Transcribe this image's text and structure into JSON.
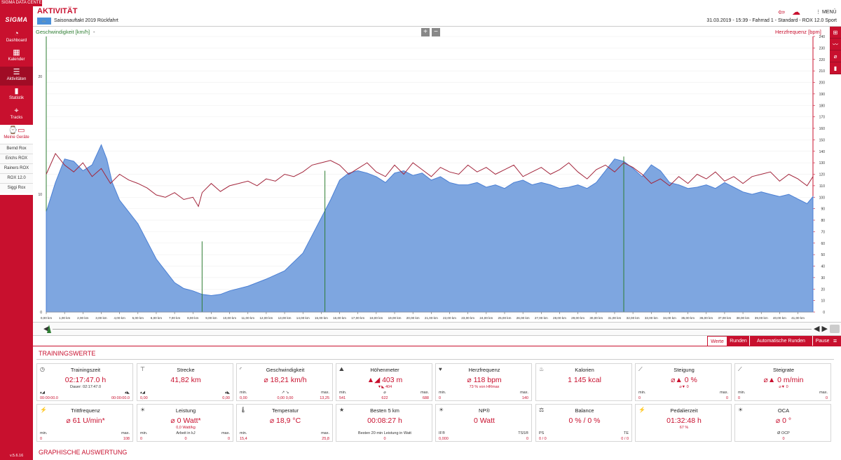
{
  "app": {
    "title": "SIGMA DATA CENTER 5.6",
    "version": "v.5.6.16",
    "logo": "SIGMA"
  },
  "sidebar": {
    "items": [
      {
        "label": "Dashboard",
        "icon": "speedometer-icon",
        "glyph": "◔"
      },
      {
        "label": "Kalender",
        "icon": "calendar-icon",
        "glyph": "▦"
      },
      {
        "label": "Aktivitäten",
        "icon": "list-icon",
        "glyph": "☰"
      },
      {
        "label": "Statistik",
        "icon": "bar-chart-icon",
        "glyph": "▮"
      },
      {
        "label": "Tracks",
        "icon": "map-pin-icon",
        "glyph": "⌖"
      }
    ],
    "devices_label": "Meine Geräte",
    "devices": [
      "Bernd Rox",
      "Erichs ROX",
      "Rainers ROX",
      "ROX 12.0",
      "Siggi Rox"
    ]
  },
  "header": {
    "title": "AKTIVITÄT",
    "activity_name": "Saisonauftakt 2019 Rückfahrt",
    "meta": "31.03.2019  -  15:39  -  Fahrrad 1  -  Standard  -  ROX 12.0 Sport",
    "menu": "MENÜ"
  },
  "chart": {
    "left_label": "Geschwindigkeit [km/h]",
    "left_dash": "-",
    "right_label": "Herzfrequenz [bpm]",
    "zoom_in": "+",
    "zoom_out": "−"
  },
  "chart_data": {
    "type": "area",
    "xlabel": "",
    "x_unit": "km",
    "xlim": [
      0,
      41.82
    ],
    "x_ticks": [
      "0,00 km",
      "1,00 km",
      "2,00 km",
      "3,00 km",
      "4,00 km",
      "5,00 km",
      "6,00 km",
      "7,00 km",
      "8,00 km",
      "9,00 km",
      "10,00 km",
      "11,00 km",
      "12,00 km",
      "13,00 km",
      "14,00 km",
      "15,00 km",
      "16,00 km",
      "17,00 km",
      "18,00 km",
      "19,00 km",
      "20,00 km",
      "21,00 km",
      "22,00 km",
      "23,00 km",
      "24,00 km",
      "25,00 km",
      "26,00 km",
      "27,00 km",
      "28,00 km",
      "29,00 km",
      "30,00 km",
      "31,00 km",
      "32,00 km",
      "33,00 km",
      "34,00 km",
      "35,00 km",
      "36,00 km",
      "37,00 km",
      "38,00 km",
      "39,00 km",
      "40,00 km",
      "41,00 km"
    ],
    "left_axis": {
      "ylim": [
        0,
        23.4
      ],
      "ticks": [
        0,
        10,
        20
      ]
    },
    "right_axis": {
      "ylim": [
        0,
        240
      ],
      "ticks": [
        0,
        10,
        20,
        30,
        40,
        50,
        60,
        70,
        80,
        90,
        100,
        110,
        120,
        130,
        140,
        150,
        160,
        170,
        180,
        190,
        200,
        210,
        220,
        230,
        240
      ]
    },
    "series": [
      {
        "name": "Höhe",
        "color": "#7ea6e0",
        "x": [
          0,
          0.5,
          1,
          1.5,
          2,
          2.5,
          3,
          3.3,
          3.6,
          4,
          4.5,
          5,
          5.5,
          6,
          6.5,
          7,
          7.5,
          8,
          8.5,
          9,
          9.5,
          10,
          11,
          12,
          13,
          14,
          14.5,
          15,
          15.5,
          16,
          16.5,
          17,
          17.5,
          18,
          18.5,
          19,
          19.5,
          20,
          20.5,
          21,
          21.5,
          22,
          22.5,
          23,
          23.5,
          24,
          24.5,
          25,
          25.5,
          26,
          26.5,
          27,
          27.5,
          28,
          28.5,
          29,
          29.5,
          30,
          30.5,
          31,
          31.5,
          32,
          32.5,
          33,
          33.5,
          34,
          34.5,
          35,
          35.5,
          36,
          36.5,
          37,
          37.5,
          38,
          38.5,
          39,
          39.5,
          40,
          40.5,
          41,
          41.5,
          41.82
        ],
        "values": [
          8.5,
          11,
          13,
          12.8,
          12,
          12.5,
          14.2,
          13,
          11,
          9.5,
          8.5,
          7.5,
          6,
          4.5,
          3.5,
          2.5,
          2,
          1.8,
          1.5,
          1.4,
          1.5,
          1.8,
          2.2,
          2.8,
          3.5,
          5,
          6.5,
          8,
          9.5,
          11.2,
          11.8,
          12,
          11.8,
          11.5,
          11,
          11.8,
          12,
          11.6,
          11.8,
          11.2,
          11.5,
          11,
          10.8,
          10.8,
          11,
          10.6,
          10.8,
          10.5,
          11,
          11.2,
          10.8,
          11,
          10.8,
          10.5,
          10.6,
          10.8,
          10.5,
          11,
          12,
          13,
          12.8,
          12.2,
          11.5,
          12.5,
          12,
          11,
          10.8,
          10.5,
          10.6,
          10.8,
          10.5,
          11,
          10.6,
          10.2,
          10,
          10.2,
          10,
          9.8,
          10,
          9.6,
          9.2,
          9.8
        ]
      },
      {
        "name": "Herzfrequenz",
        "color": "#a3263c",
        "x": [
          0,
          0.5,
          1,
          1.5,
          2,
          2.5,
          3,
          3.5,
          4,
          4.5,
          5,
          5.5,
          6,
          6.5,
          7,
          7.5,
          8,
          8.3,
          8.5,
          9,
          9.5,
          10,
          10.5,
          11,
          11.5,
          12,
          12.5,
          13,
          13.5,
          14,
          14.5,
          15,
          15.5,
          16,
          16.5,
          17,
          17.5,
          18,
          18.5,
          19,
          19.5,
          20,
          20.5,
          21,
          21.5,
          22,
          22.5,
          23,
          23.5,
          24,
          24.5,
          25,
          25.5,
          26,
          26.5,
          27,
          27.5,
          28,
          28.5,
          29,
          29.5,
          30,
          30.5,
          31,
          31.5,
          32,
          32.5,
          33,
          33.5,
          34,
          34.5,
          35,
          35.5,
          36,
          36.5,
          37,
          37.5,
          38,
          38.5,
          39,
          39.5,
          40,
          40.5,
          41,
          41.5,
          41.82
        ],
        "values": [
          120,
          138,
          128,
          122,
          130,
          118,
          125,
          112,
          120,
          115,
          112,
          108,
          102,
          100,
          104,
          98,
          100,
          92,
          104,
          112,
          105,
          110,
          112,
          114,
          110,
          116,
          114,
          120,
          118,
          122,
          128,
          130,
          132,
          128,
          120,
          125,
          130,
          122,
          118,
          128,
          120,
          130,
          124,
          118,
          126,
          122,
          120,
          128,
          122,
          126,
          120,
          124,
          128,
          118,
          122,
          126,
          120,
          124,
          130,
          122,
          116,
          124,
          128,
          122,
          130,
          126,
          120,
          112,
          116,
          110,
          118,
          112,
          120,
          116,
          122,
          114,
          118,
          112,
          118,
          120,
          122,
          114,
          120,
          116,
          110,
          118
        ]
      }
    ]
  },
  "timeline": {
    "left": "◀",
    "right": "◀ ▶"
  },
  "tabs": [
    "Werte",
    "Runden",
    "Automatische Runden",
    "Pausen"
  ],
  "section_title": "TRAININGSWERTE",
  "graph_title": "GRAPHISCHE AUSWERTUNG",
  "cards": [
    {
      "title": "Trainingszeit",
      "icon": "stopwatch-icon",
      "glyph": "◷",
      "main": "02:17:47.0 h",
      "sub": "Dauer:  02:17:47.0",
      "sub_color": "#333",
      "ll": "▴◢",
      "lr": "▴◣",
      "vl": "00:00:00.0",
      "vr": "00:00:00.0"
    },
    {
      "title": "Strecke",
      "icon": "road-icon",
      "glyph": "⊤",
      "main": "41,82 km",
      "ll": "▴◢",
      "lr": "▴◣",
      "vl": "0,00",
      "vr": "0,00"
    },
    {
      "title": "Geschwindigkeit",
      "icon": "gauge-icon",
      "glyph": "◜",
      "main": "⌀ 18,21 km/h",
      "ll": "min.",
      "lm": "↗   ↘",
      "lr": "max.",
      "vl": "0,00",
      "vm": "0,00     0,00",
      "vr": "13,25"
    },
    {
      "title": "Höhenmeter",
      "icon": "mountain-icon",
      "glyph": "⛰",
      "main": "▲◢ 403 m",
      "sub": "▼◣ 404",
      "ll": "min.",
      "lm": "⌀",
      "lr": "max.",
      "vl": "541",
      "vm": "622",
      "vr": "688"
    },
    {
      "title": "Herzfrequenz",
      "icon": "heart-icon",
      "glyph": "♥",
      "main": "⌀ 118 bpm",
      "sub": "73 % von HRmax",
      "ll": "min.",
      "lr": "max.",
      "vl": "0",
      "vr": "140"
    },
    {
      "title": "Kalorien",
      "icon": "flame-icon",
      "glyph": "♨",
      "main": "1 145 kcal"
    },
    {
      "title": "Steigung",
      "icon": "slope-icon",
      "glyph": "⟋",
      "main": "⌀▲ 0 %",
      "sub": "⌀▼ 0",
      "ll": "min.",
      "lr": "max.",
      "vl": "0",
      "vr": "0"
    },
    {
      "title": "Steigrate",
      "icon": "climb-rate-icon",
      "glyph": "⟋",
      "main": "⌀▲ 0 m/min",
      "sub": "⌀▼ 0",
      "ll": "min.",
      "lr": "max.",
      "vl": "0",
      "vr": "0"
    },
    {
      "title": "Trittfrequenz",
      "icon": "cadence-icon",
      "glyph": "⚡",
      "main": "⌀ 61 U/min*",
      "ll": "min.",
      "lr": "max.",
      "vl": "0",
      "vr": "108"
    },
    {
      "title": "Leistung",
      "icon": "power-bulb-icon",
      "glyph": "☀",
      "main": "⌀ 0 Watt*",
      "sub": "0,0 Watt/kg",
      "ll": "min.",
      "lm": "Arbeit in kJ",
      "lr": "max.",
      "vl": "0",
      "vm": "0",
      "vr": "0"
    },
    {
      "title": "Temperatur",
      "icon": "thermometer-icon",
      "glyph": "🌡",
      "main": "⌀ 18,9 °C",
      "ll": "min.",
      "lr": "max.",
      "vl": "15,4",
      "vr": "25,8"
    },
    {
      "title": "Besten 5 km",
      "icon": "star-icon",
      "glyph": "★",
      "main": "00:08:27 h",
      "lm": "Besten 20 min Leistung in Watt",
      "vm": "0"
    },
    {
      "title": "NP®",
      "icon": "power-bulb-icon",
      "glyph": "☀",
      "main": "0 Watt",
      "ll": "IF®",
      "lr": "TSS®",
      "vl": "0,000",
      "vr": "0"
    },
    {
      "title": "Balance",
      "icon": "balance-icon",
      "glyph": "⚖",
      "main": "0 %  /  0 %",
      "ll": "PS",
      "lr": "TE",
      "vl": "0  /  0",
      "vr": "0  /  0"
    },
    {
      "title": "Pedalierzeit",
      "icon": "pedal-icon",
      "glyph": "⚡",
      "main": "01:32:48 h",
      "sub": "67 %"
    },
    {
      "title": "OCA",
      "icon": "power-bulb-icon",
      "glyph": "☀",
      "main": "⌀ 0 °",
      "lm": "Ø OCP",
      "vm": "0"
    }
  ],
  "right_tools": [
    "⊞",
    "〰",
    "⌀",
    "▮"
  ]
}
